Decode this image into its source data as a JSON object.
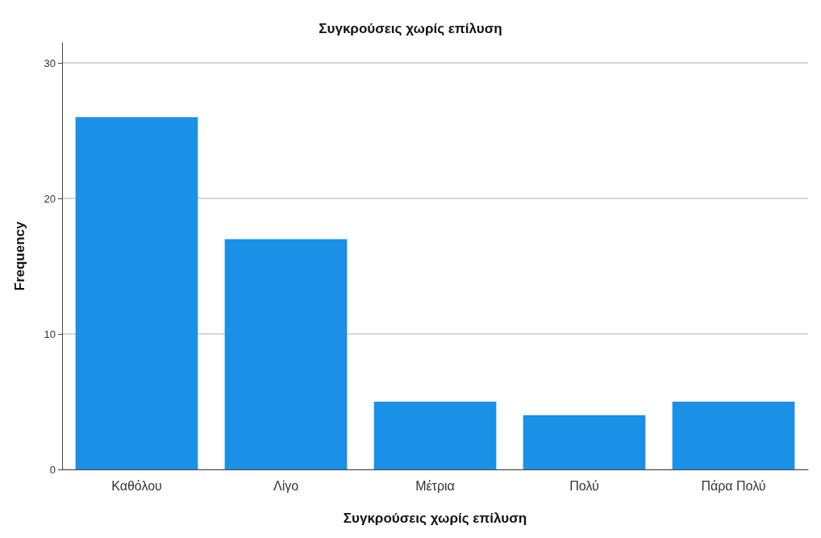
{
  "chart_data": {
    "type": "bar",
    "title": "Συγκρούσεις χωρίς επίλυση",
    "xlabel": "Συγκρούσεις χωρίς επίλυση",
    "ylabel": "Frequency",
    "categories": [
      "Καθόλου",
      "Λίγο",
      "Μέτρια",
      "Πολύ",
      "Πάρα Πολύ"
    ],
    "values": [
      26,
      17,
      5,
      4,
      5
    ],
    "color": "#1a90e6",
    "ylim": [
      0,
      31.5
    ],
    "yticks": [
      0,
      10,
      20,
      30
    ],
    "grid": "y"
  }
}
